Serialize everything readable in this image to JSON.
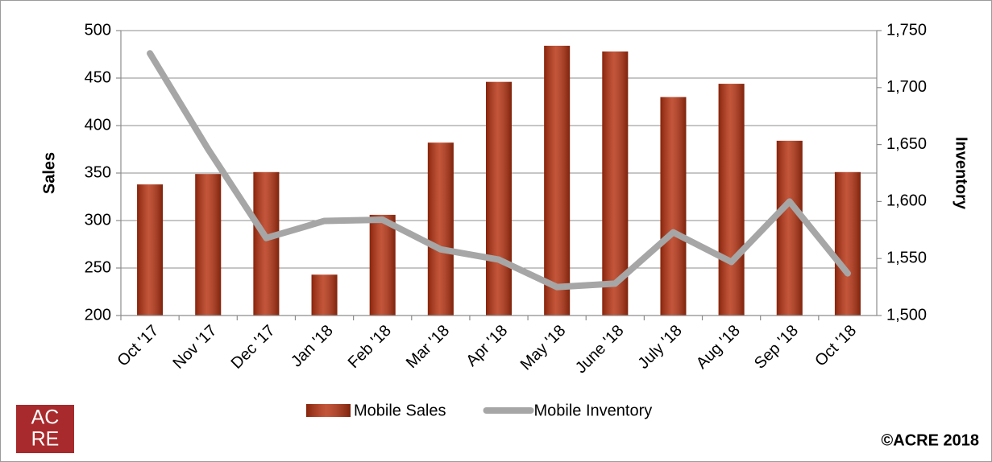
{
  "chart_data": {
    "type": "bar",
    "categories": [
      "Oct '17",
      "Nov '17",
      "Dec '17",
      "Jan '18",
      "Feb '18",
      "Mar '18",
      "Apr '18",
      "May '18",
      "June '18",
      "July '18",
      "Aug '18",
      "Sep '18",
      "Oct '18"
    ],
    "series": [
      {
        "name": "Mobile Sales",
        "type": "bar",
        "color": "#b5300f",
        "axis": "y",
        "values": [
          338,
          349,
          351,
          243,
          306,
          382,
          446,
          484,
          478,
          430,
          444,
          384,
          351
        ]
      },
      {
        "name": "Mobile Inventory",
        "type": "line",
        "color": "#a6a6a6",
        "axis": "y2",
        "values": [
          1730,
          1646,
          1568,
          1583,
          1584,
          1558,
          1549,
          1525,
          1528,
          1573,
          1547,
          1600,
          1537
        ]
      }
    ],
    "ylabel": "Sales",
    "y2label": "Inventory",
    "ylim": [
      200,
      500
    ],
    "yticks": [
      200,
      250,
      300,
      350,
      400,
      450,
      500
    ],
    "y2lim": [
      1500,
      1750
    ],
    "y2ticks": [
      {
        "value": 1500,
        "label": "1,500"
      },
      {
        "value": 1550,
        "label": "1,550"
      },
      {
        "value": 1600,
        "label": "1,600"
      },
      {
        "value": 1650,
        "label": "1,650"
      },
      {
        "value": 1700,
        "label": "1,700"
      },
      {
        "value": 1750,
        "label": "1,750"
      }
    ],
    "grid": true,
    "legend": "bottom",
    "logo": [
      "AC",
      "RE"
    ],
    "copyright": "©ACRE 2018"
  }
}
